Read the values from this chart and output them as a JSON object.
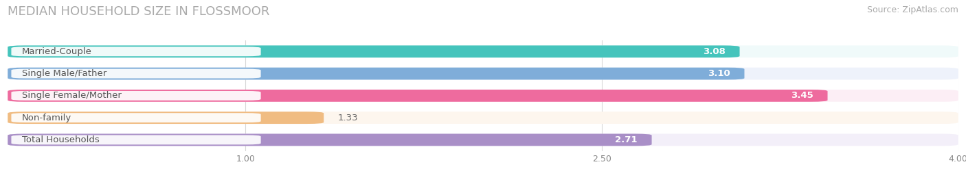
{
  "title": "MEDIAN HOUSEHOLD SIZE IN FLOSSMOOR",
  "source": "Source: ZipAtlas.com",
  "categories": [
    "Married-Couple",
    "Single Male/Father",
    "Single Female/Mother",
    "Non-family",
    "Total Households"
  ],
  "values": [
    3.08,
    3.1,
    3.45,
    1.33,
    2.71
  ],
  "bar_colors": [
    "#45c4bc",
    "#7fadd9",
    "#ee6b9e",
    "#f0bc82",
    "#a98fc7"
  ],
  "bar_bg_colors": [
    "#f0fafa",
    "#eef2fb",
    "#fceef5",
    "#fdf6ee",
    "#f3eff9"
  ],
  "xlim_start": 0.0,
  "xlim_end": 4.0,
  "xticks": [
    1.0,
    2.5,
    4.0
  ],
  "bar_height": 0.55,
  "title_fontsize": 13,
  "source_fontsize": 9,
  "label_fontsize": 9.5,
  "value_fontsize": 9.5,
  "bg_color": "#ffffff",
  "grid_color": "#d8d8d8",
  "value_inside_threshold": 2.0,
  "value_inside_color": "white",
  "value_outside_color": "#666666",
  "label_text_color": "#555555"
}
